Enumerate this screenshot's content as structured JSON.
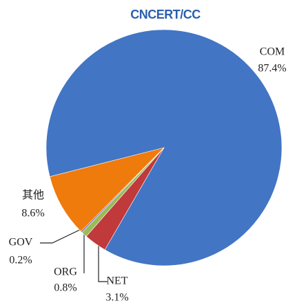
{
  "chart_data": {
    "type": "pie",
    "title": "CNCERT/CC",
    "categories": [
      "COM",
      "NET",
      "ORG",
      "GOV",
      "其他"
    ],
    "values": [
      87.4,
      3.1,
      0.8,
      0.2,
      8.6
    ],
    "value_labels": [
      "87.4%",
      "3.1%",
      "0.8%",
      "0.2%",
      "8.6%"
    ],
    "colors": [
      "#4275c4",
      "#c0393b",
      "#9bbb59",
      "#7f63a1",
      "#ee7b0c"
    ]
  }
}
